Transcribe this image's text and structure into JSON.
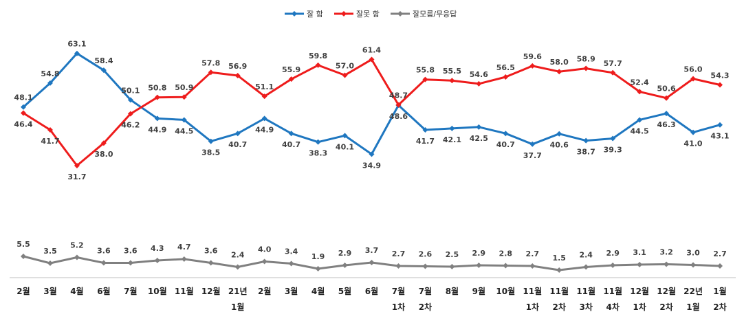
{
  "chart_data": {
    "type": "line",
    "categories": [
      [
        "2월"
      ],
      [
        "3월"
      ],
      [
        "4월"
      ],
      [
        "6월"
      ],
      [
        "7월"
      ],
      [
        "10월"
      ],
      [
        "11월"
      ],
      [
        "12월"
      ],
      [
        "21년",
        "1월"
      ],
      [
        "2월"
      ],
      [
        "3월"
      ],
      [
        "4월"
      ],
      [
        "5월"
      ],
      [
        "6월"
      ],
      [
        "7월",
        "1차"
      ],
      [
        "7월",
        "2차"
      ],
      [
        "8월"
      ],
      [
        "9월"
      ],
      [
        "10월"
      ],
      [
        "11월",
        "1차"
      ],
      [
        "11월",
        "2차"
      ],
      [
        "11월",
        "3차"
      ],
      [
        "11월",
        "4차"
      ],
      [
        "12월",
        "1차"
      ],
      [
        "12월",
        "2차"
      ],
      [
        "22년",
        "1월"
      ],
      [
        "1월",
        "2차"
      ]
    ],
    "series": [
      {
        "name": "잘 함",
        "color": "#1f77c0",
        "values": [
          48.1,
          54.8,
          63.1,
          58.4,
          50.1,
          44.9,
          44.5,
          38.5,
          40.7,
          44.9,
          40.7,
          38.3,
          40.1,
          34.9,
          48.6,
          41.7,
          42.1,
          42.5,
          40.7,
          37.7,
          40.6,
          38.7,
          39.3,
          44.5,
          46.3,
          41.0,
          43.1
        ]
      },
      {
        "name": "잘못 함",
        "color": "#ee1c1c",
        "values": [
          46.4,
          41.7,
          31.7,
          38.0,
          46.2,
          50.8,
          50.9,
          57.8,
          56.9,
          51.1,
          55.9,
          59.8,
          57.0,
          61.4,
          48.7,
          55.8,
          55.5,
          54.6,
          56.5,
          59.6,
          58.0,
          58.9,
          57.7,
          52.4,
          50.6,
          56.0,
          54.3
        ]
      },
      {
        "name": "잘모름/무응답",
        "color": "#808080",
        "values": [
          5.5,
          3.5,
          5.2,
          3.6,
          3.6,
          4.3,
          4.7,
          3.6,
          2.4,
          4.0,
          3.4,
          1.9,
          2.9,
          3.7,
          2.7,
          2.6,
          2.5,
          2.9,
          2.8,
          2.7,
          1.5,
          2.4,
          2.9,
          3.1,
          3.2,
          3.0,
          2.7
        ]
      }
    ],
    "legend_position": "top-center",
    "grid": false
  }
}
